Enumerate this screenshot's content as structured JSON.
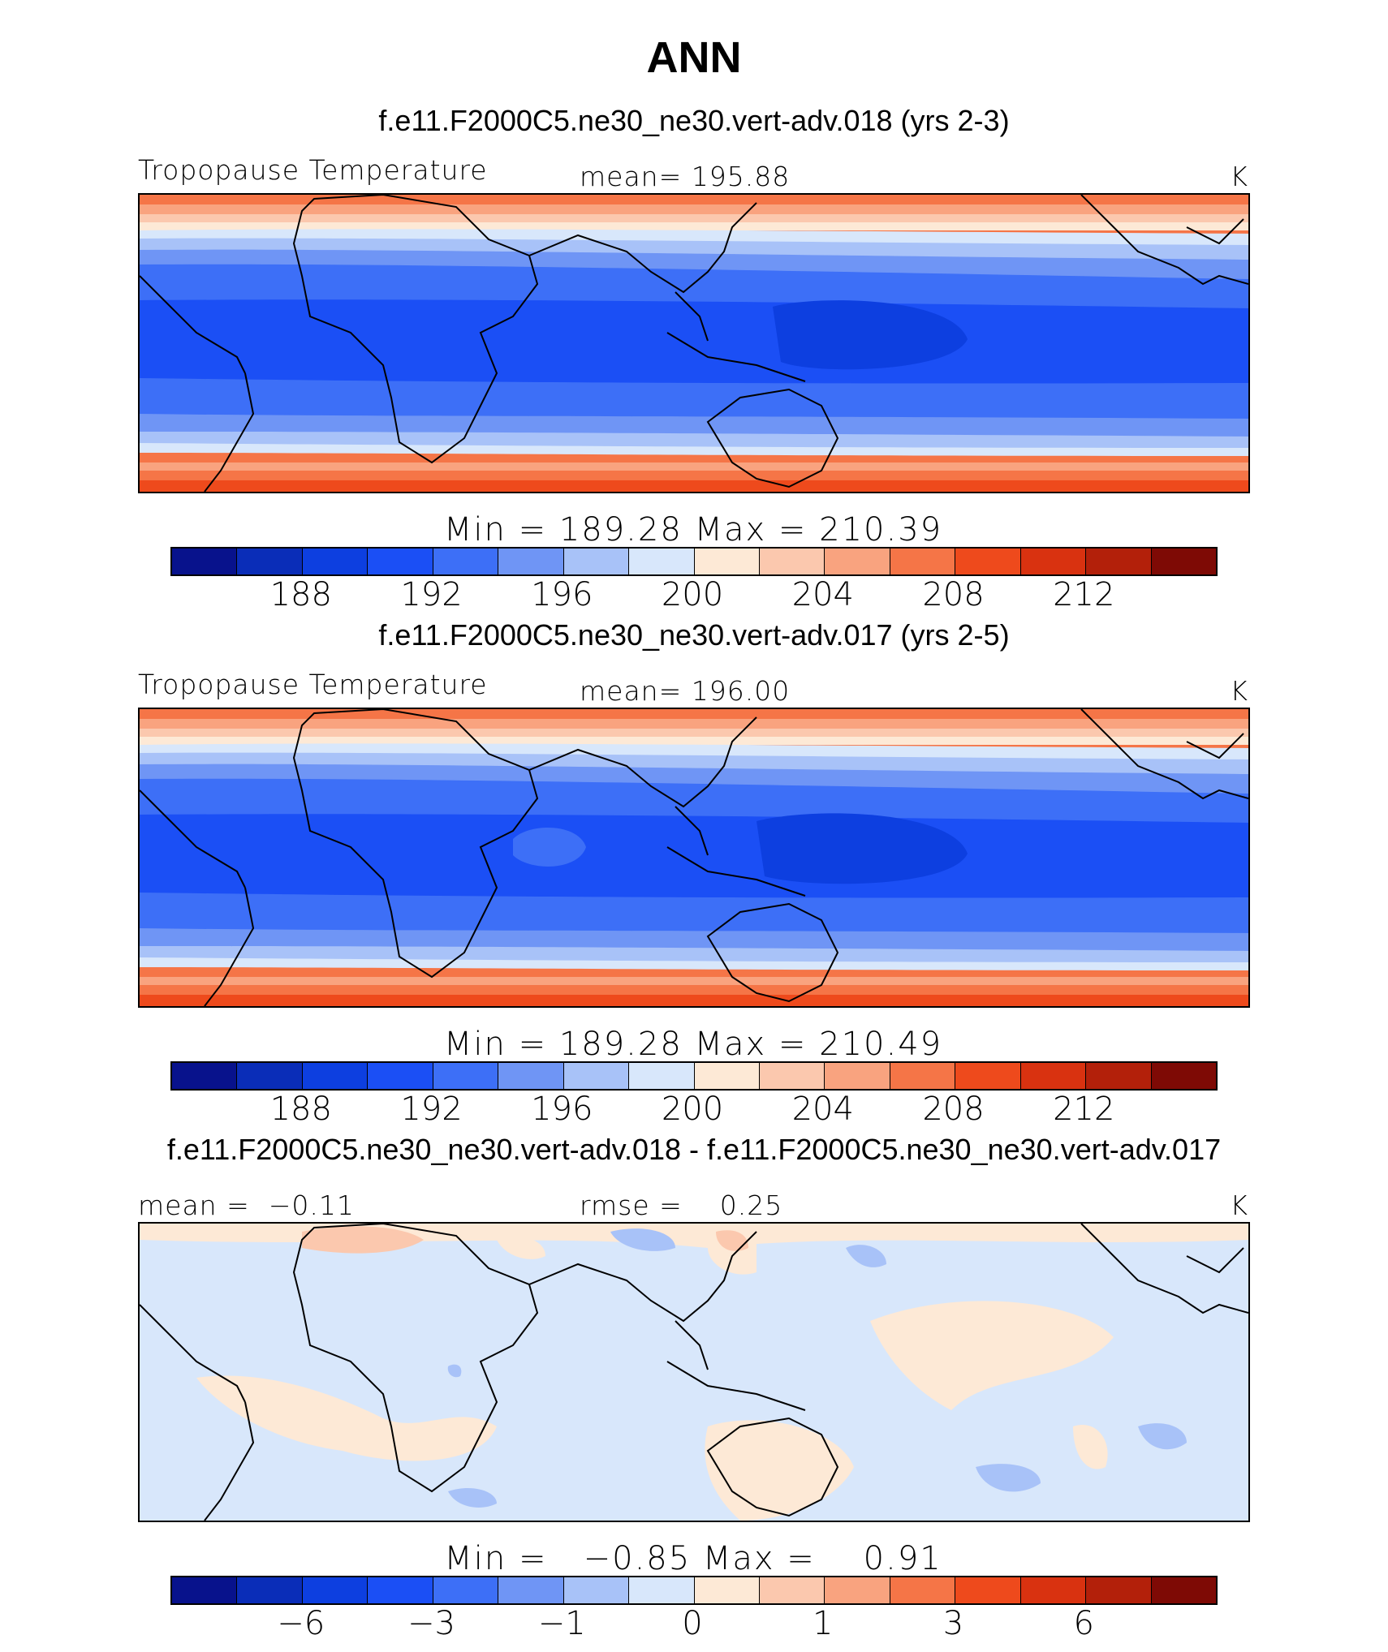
{
  "figure": {
    "title": "ANN"
  },
  "panels": [
    {
      "title": "f.e11.F2000C5.ne30_ne30.vert-adv.018 (yrs 2-3)",
      "left_label": "Tropopause Temperature",
      "center_label": "mean= 195.88",
      "right_label": "K",
      "minmax": "Min = 189.28 Max = 210.39",
      "field": "tropopause_temperature",
      "mean": 195.88,
      "min": 189.28,
      "max": 210.39
    },
    {
      "title": "f.e11.F2000C5.ne30_ne30.vert-adv.017 (yrs 2-5)",
      "left_label": "Tropopause Temperature",
      "center_label": "mean= 196.00",
      "right_label": "K",
      "minmax": "Min = 189.28 Max = 210.49",
      "field": "tropopause_temperature",
      "mean": 196.0,
      "min": 189.28,
      "max": 210.49
    },
    {
      "title": "f.e11.F2000C5.ne30_ne30.vert-adv.018 - f.e11.F2000C5.ne30_ne30.vert-adv.017",
      "left_label": "mean =  −0.11",
      "center_label": "rmse =    0.25",
      "right_label": "K",
      "minmax": "Min =   −0.85 Max =    0.91",
      "field": "difference",
      "mean": -0.11,
      "rmse": 0.25,
      "min": -0.85,
      "max": 0.91
    }
  ],
  "colorbars": {
    "colors": [
      "#08128c",
      "#0a2db8",
      "#0d3fe0",
      "#1b4ff5",
      "#3d6ff7",
      "#6f95f5",
      "#a8c2f8",
      "#d8e7fb",
      "#fde9d6",
      "#fbc8ae",
      "#f9a37f",
      "#f57547",
      "#ee4a1c",
      "#d93210",
      "#b3200a",
      "#7e0a05"
    ],
    "absolute_ticks": [
      "188",
      "192",
      "196",
      "200",
      "204",
      "208",
      "212"
    ],
    "diff_ticks": [
      "−6",
      "−3",
      "−1",
      "0",
      "1",
      "3",
      "6"
    ]
  },
  "map_colors": {
    "coastline": "#000000"
  }
}
